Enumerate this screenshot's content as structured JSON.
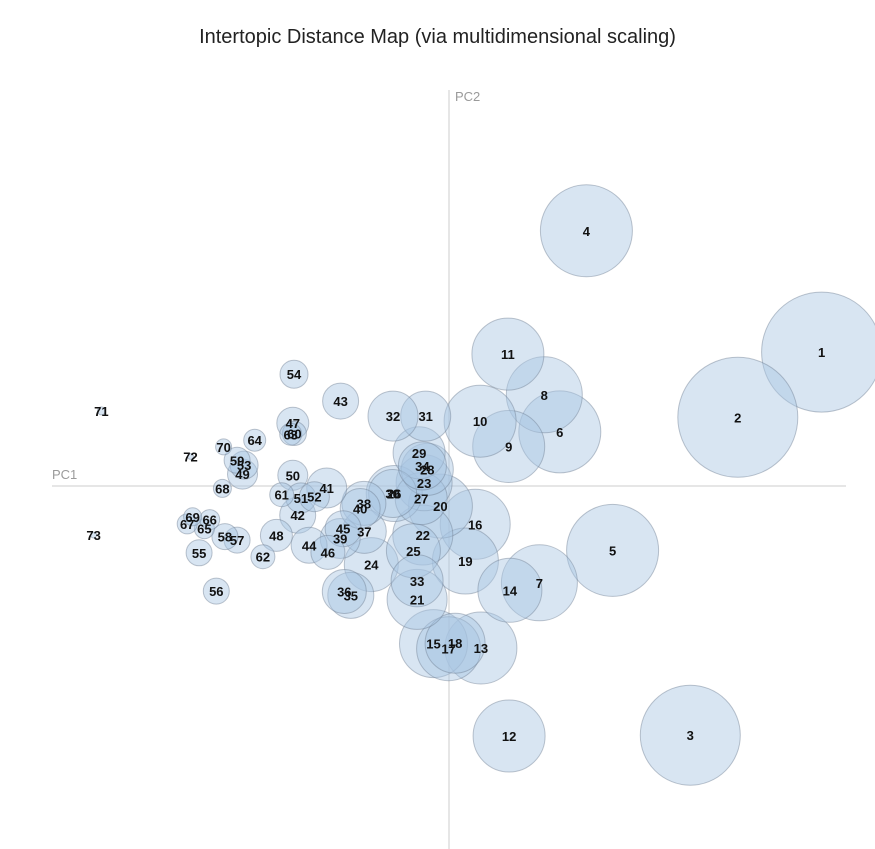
{
  "chart_data": {
    "type": "scatter",
    "title": "Intertopic Distance Map (via multidimensional scaling)",
    "xlabel": "PC1",
    "ylabel": "PC2",
    "xlim": [
      -1,
      1
    ],
    "ylim": [
      -1,
      1
    ],
    "size_scale_max": 60,
    "bubble_color": "#a9c6e3",
    "points": [
      {
        "label": "1",
        "x": 0.911,
        "y": 0.339,
        "size": 60
      },
      {
        "label": "2",
        "x": 0.706,
        "y": 0.174,
        "size": 60
      },
      {
        "label": "3",
        "x": 0.59,
        "y": -0.631,
        "size": 50
      },
      {
        "label": "4",
        "x": 0.336,
        "y": 0.646,
        "size": 46
      },
      {
        "label": "5",
        "x": 0.4,
        "y": -0.163,
        "size": 46
      },
      {
        "label": "6",
        "x": 0.271,
        "y": 0.137,
        "size": 41
      },
      {
        "label": "7",
        "x": 0.221,
        "y": -0.245,
        "size": 38
      },
      {
        "label": "8",
        "x": 0.233,
        "y": 0.231,
        "size": 38
      },
      {
        "label": "9",
        "x": 0.146,
        "y": 0.1,
        "size": 36
      },
      {
        "label": "10",
        "x": 0.076,
        "y": 0.164,
        "size": 36
      },
      {
        "label": "11",
        "x": 0.144,
        "y": 0.334,
        "size": 36
      },
      {
        "label": "12",
        "x": 0.147,
        "y": -0.633,
        "size": 36
      },
      {
        "label": "13",
        "x": 0.078,
        "y": -0.41,
        "size": 36
      },
      {
        "label": "14",
        "x": 0.149,
        "y": -0.264,
        "size": 32
      },
      {
        "label": "15",
        "x": -0.038,
        "y": -0.399,
        "size": 34
      },
      {
        "label": "16",
        "x": 0.064,
        "y": -0.097,
        "size": 35
      },
      {
        "label": "17",
        "x": -0.001,
        "y": -0.412,
        "size": 32
      },
      {
        "label": "18",
        "x": 0.015,
        "y": -0.398,
        "size": 30
      },
      {
        "label": "19",
        "x": 0.04,
        "y": -0.19,
        "size": 33
      },
      {
        "label": "20",
        "x": -0.021,
        "y": -0.051,
        "size": 32
      },
      {
        "label": "21",
        "x": -0.078,
        "y": -0.287,
        "size": 30
      },
      {
        "label": "22",
        "x": -0.064,
        "y": -0.124,
        "size": 30
      },
      {
        "label": "23",
        "x": -0.061,
        "y": 0.008,
        "size": 28
      },
      {
        "label": "24",
        "x": -0.19,
        "y": -0.199,
        "size": 27
      },
      {
        "label": "25",
        "x": -0.087,
        "y": -0.164,
        "size": 27
      },
      {
        "label": "26",
        "x": -0.134,
        "y": -0.019,
        "size": 28
      },
      {
        "label": "27",
        "x": -0.068,
        "y": -0.032,
        "size": 26
      },
      {
        "label": "28",
        "x": -0.053,
        "y": 0.042,
        "size": 26
      },
      {
        "label": "29",
        "x": -0.073,
        "y": 0.084,
        "size": 26
      },
      {
        "label": "30",
        "x": -0.138,
        "y": -0.019,
        "size": 24
      },
      {
        "label": "31",
        "x": -0.057,
        "y": 0.177,
        "size": 25
      },
      {
        "label": "32",
        "x": -0.137,
        "y": 0.177,
        "size": 25
      },
      {
        "label": "33",
        "x": -0.078,
        "y": -0.24,
        "size": 26
      },
      {
        "label": "34",
        "x": -0.065,
        "y": 0.051,
        "size": 24
      },
      {
        "label": "35",
        "x": -0.24,
        "y": -0.277,
        "size": 23
      },
      {
        "label": "36",
        "x": -0.256,
        "y": -0.267,
        "size": 22
      },
      {
        "label": "37",
        "x": -0.207,
        "y": -0.115,
        "size": 22
      },
      {
        "label": "38",
        "x": -0.208,
        "y": -0.044,
        "size": 22
      },
      {
        "label": "39",
        "x": -0.266,
        "y": -0.133,
        "size": 20
      },
      {
        "label": "40",
        "x": -0.217,
        "y": -0.057,
        "size": 20
      },
      {
        "label": "41",
        "x": -0.299,
        "y": -0.005,
        "size": 20
      },
      {
        "label": "42",
        "x": -0.37,
        "y": -0.074,
        "size": 18
      },
      {
        "label": "43",
        "x": -0.265,
        "y": 0.215,
        "size": 18
      },
      {
        "label": "44",
        "x": -0.342,
        "y": -0.15,
        "size": 18
      },
      {
        "label": "45",
        "x": -0.259,
        "y": -0.108,
        "size": 18
      },
      {
        "label": "46",
        "x": -0.296,
        "y": -0.168,
        "size": 17
      },
      {
        "label": "47",
        "x": -0.382,
        "y": 0.159,
        "size": 16
      },
      {
        "label": "48",
        "x": -0.422,
        "y": -0.125,
        "size": 16
      },
      {
        "label": "49",
        "x": -0.505,
        "y": 0.03,
        "size": 15
      },
      {
        "label": "50",
        "x": -0.382,
        "y": 0.027,
        "size": 15
      },
      {
        "label": "51",
        "x": -0.362,
        "y": -0.03,
        "size": 15
      },
      {
        "label": "52",
        "x": -0.329,
        "y": -0.027,
        "size": 15
      },
      {
        "label": "53",
        "x": -0.501,
        "y": 0.053,
        "size": 14
      },
      {
        "label": "54",
        "x": -0.379,
        "y": 0.283,
        "size": 14
      },
      {
        "label": "55",
        "x": -0.611,
        "y": -0.169,
        "size": 13
      },
      {
        "label": "56",
        "x": -0.569,
        "y": -0.266,
        "size": 13
      },
      {
        "label": "57",
        "x": -0.518,
        "y": -0.137,
        "size": 13
      },
      {
        "label": "58",
        "x": -0.548,
        "y": -0.128,
        "size": 13
      },
      {
        "label": "59",
        "x": -0.518,
        "y": 0.065,
        "size": 13
      },
      {
        "label": "60",
        "x": -0.378,
        "y": 0.133,
        "size": 12
      },
      {
        "label": "61",
        "x": -0.409,
        "y": -0.022,
        "size": 12
      },
      {
        "label": "62",
        "x": -0.455,
        "y": -0.179,
        "size": 12
      },
      {
        "label": "63",
        "x": -0.387,
        "y": 0.131,
        "size": 11
      },
      {
        "label": "64",
        "x": -0.475,
        "y": 0.116,
        "size": 11
      },
      {
        "label": "65",
        "x": -0.598,
        "y": -0.108,
        "size": 10
      },
      {
        "label": "66",
        "x": -0.585,
        "y": -0.085,
        "size": 10
      },
      {
        "label": "67",
        "x": -0.64,
        "y": -0.096,
        "size": 10
      },
      {
        "label": "68",
        "x": -0.554,
        "y": -0.006,
        "size": 9
      },
      {
        "label": "69",
        "x": -0.627,
        "y": -0.078,
        "size": 9
      },
      {
        "label": "70",
        "x": -0.551,
        "y": 0.099,
        "size": 8
      },
      {
        "label": "71",
        "x": -0.85,
        "y": 0.19,
        "size": 4
      },
      {
        "label": "72",
        "x": -0.632,
        "y": 0.075,
        "size": 3
      },
      {
        "label": "73",
        "x": -0.869,
        "y": -0.124,
        "size": 3
      }
    ]
  }
}
